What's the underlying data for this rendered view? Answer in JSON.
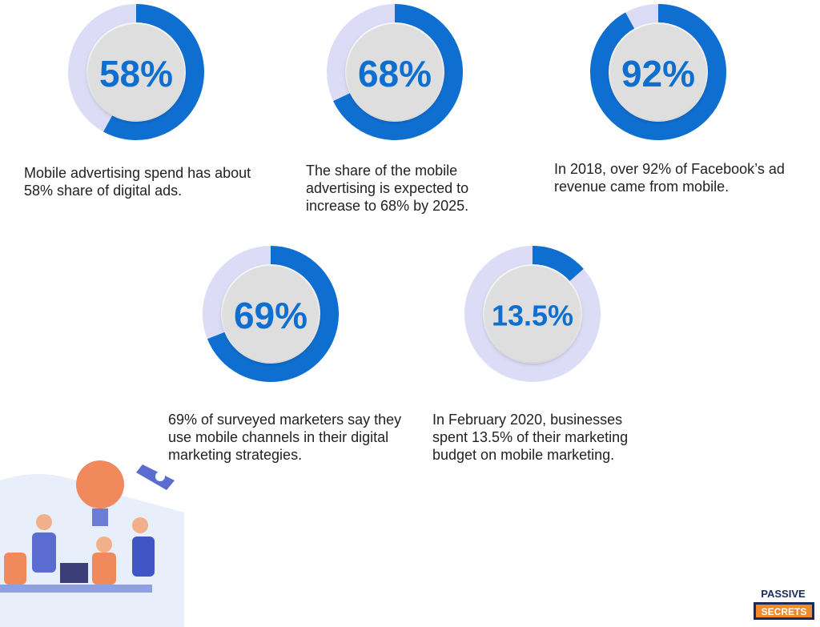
{
  "chart_data": [
    {
      "type": "donut",
      "values": [
        58
      ],
      "value_labels": [
        "58%"
      ],
      "caption": "Mobile advertising spend has about 58% share of digital ads.",
      "color": "#0f6fd1",
      "track_color": "#dcdcf7"
    },
    {
      "type": "donut",
      "values": [
        68
      ],
      "value_labels": [
        "68%"
      ],
      "caption": "The share of the mobile advertising is expected to increase to 68% by 2025.",
      "color": "#0f6fd1",
      "track_color": "#dcdcf7"
    },
    {
      "type": "donut",
      "values": [
        92
      ],
      "value_labels": [
        "92%"
      ],
      "caption": "In 2018, over 92% of Facebook’s ad revenue came from mobile.",
      "color": "#0f6fd1",
      "track_color": "#dcdcf7"
    },
    {
      "type": "donut",
      "values": [
        69
      ],
      "value_labels": [
        "69%"
      ],
      "caption": " 69% of surveyed marketers say they use mobile channels in their digital marketing strategies.",
      "color": "#0f6fd1",
      "track_color": "#dcdcf7"
    },
    {
      "type": "donut",
      "values": [
        13.5
      ],
      "value_labels": [
        "13.5%"
      ],
      "caption": "In February 2020, businesses spent 13.5% of their marketing budget on mobile marketing.",
      "color": "#0f6fd1",
      "track_color": "#dcdcf7"
    }
  ],
  "logo": {
    "top": "PASSIVE",
    "bottom": "SECRETS"
  }
}
